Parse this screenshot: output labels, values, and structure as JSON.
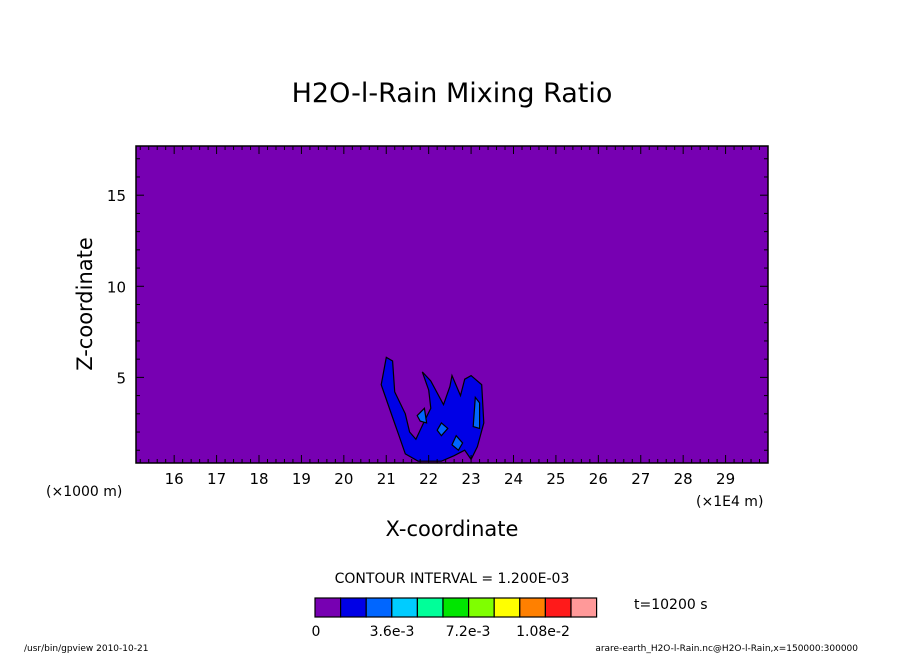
{
  "chart_data": {
    "type": "contour",
    "title": "H2O-l-Rain Mixing Ratio",
    "xlabel": "X-coordinate",
    "ylabel": "Z-coordinate",
    "x_unit_left": "(×1000 m)",
    "x_unit_right": "(×1E4 m)",
    "xlim": [
      15.1,
      30.0
    ],
    "ylim": [
      0.3,
      17.7
    ],
    "x_ticks": [
      16,
      17,
      18,
      19,
      20,
      21,
      22,
      23,
      24,
      25,
      26,
      27,
      28,
      29
    ],
    "x_tick_labels": [
      "16",
      "17",
      "18",
      "19",
      "20",
      "21",
      "22",
      "23",
      "24",
      "25",
      "26",
      "27",
      "28",
      "29"
    ],
    "y_ticks": [
      5,
      10,
      15
    ],
    "y_tick_labels": [
      "5",
      "10",
      "15"
    ],
    "contour_interval_text": "CONTOUR INTERVAL = 1.200E-03",
    "time_text": "t=10200 s",
    "background_color": "#7700b2",
    "colorbar": {
      "colors": [
        "#7700b2",
        "#0000e6",
        "#0066ff",
        "#00ccff",
        "#00ff99",
        "#00e600",
        "#7fff00",
        "#ffff00",
        "#ff8000",
        "#ff1a1a",
        "#ff9999"
      ],
      "labels": [
        "0",
        "3.6e-3",
        "7.2e-3",
        "1.08e-2"
      ]
    },
    "regions": [
      {
        "level": 1,
        "color": "#0000e6",
        "points": [
          [
            20.88,
            4.6
          ],
          [
            21.0,
            6.1
          ],
          [
            21.15,
            5.9
          ],
          [
            21.2,
            4.2
          ],
          [
            21.45,
            3.0
          ],
          [
            21.55,
            2.0
          ],
          [
            21.7,
            1.6
          ],
          [
            21.9,
            2.6
          ],
          [
            22.05,
            3.3
          ],
          [
            22.0,
            4.3
          ],
          [
            21.85,
            5.3
          ],
          [
            22.05,
            4.8
          ],
          [
            22.35,
            3.5
          ],
          [
            22.5,
            4.5
          ],
          [
            22.55,
            5.1
          ],
          [
            22.75,
            4.0
          ],
          [
            22.85,
            4.9
          ],
          [
            23.0,
            5.1
          ],
          [
            23.25,
            4.6
          ],
          [
            23.3,
            2.5
          ],
          [
            23.15,
            1.2
          ],
          [
            23.0,
            0.5
          ],
          [
            22.85,
            1.0
          ],
          [
            22.6,
            0.7
          ],
          [
            22.3,
            0.4
          ],
          [
            22.05,
            0.4
          ],
          [
            21.75,
            0.4
          ],
          [
            21.45,
            0.8
          ],
          [
            21.3,
            1.8
          ],
          [
            21.15,
            2.8
          ]
        ]
      },
      {
        "level": 2,
        "color": "#0066ff",
        "points": [
          [
            21.73,
            2.9
          ],
          [
            21.9,
            3.3
          ],
          [
            21.95,
            2.5
          ],
          [
            21.8,
            2.6
          ]
        ]
      },
      {
        "level": 2,
        "color": "#0066ff",
        "points": [
          [
            23.05,
            2.3
          ],
          [
            23.1,
            3.9
          ],
          [
            23.2,
            3.6
          ],
          [
            23.2,
            2.2
          ]
        ]
      },
      {
        "level": 2,
        "color": "#0066ff",
        "points": [
          [
            22.55,
            1.3
          ],
          [
            22.65,
            1.8
          ],
          [
            22.8,
            1.4
          ],
          [
            22.7,
            1.0
          ]
        ]
      },
      {
        "level": 2,
        "color": "#0066ff",
        "points": [
          [
            22.2,
            2.1
          ],
          [
            22.3,
            2.5
          ],
          [
            22.45,
            2.2
          ],
          [
            22.3,
            1.8
          ]
        ]
      }
    ]
  },
  "footer": {
    "left": "/usr/bin/gpview  2010-10-21",
    "right": "arare-earth_H2O-l-Rain.nc@H2O-l-Rain,x=150000:300000"
  }
}
